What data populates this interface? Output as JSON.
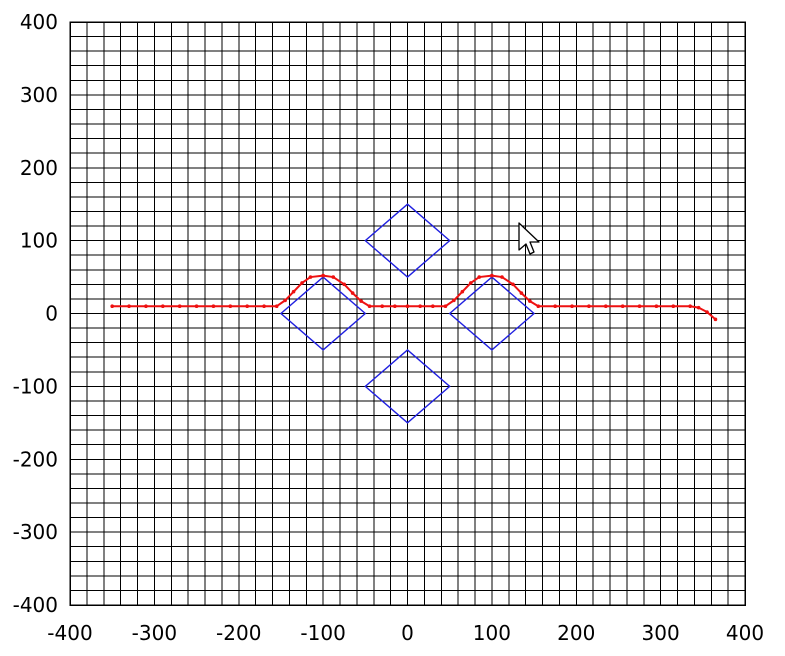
{
  "chart_data": {
    "type": "line",
    "title": "",
    "xlabel": "",
    "ylabel": "",
    "xlim": [
      -400,
      400
    ],
    "ylim": [
      -400,
      400
    ],
    "grid": true,
    "grid_step": 20,
    "xticks": [
      -400,
      -300,
      -200,
      -100,
      0,
      100,
      200,
      300,
      400
    ],
    "yticks": [
      400,
      300,
      200,
      100,
      0,
      -100,
      -200,
      -300,
      -400
    ],
    "xtick_labels": [
      "-400",
      "-300",
      "-200",
      "-100",
      "0",
      "100",
      "200",
      "300",
      "400"
    ],
    "ytick_labels": [
      "400",
      "300",
      "200",
      "100",
      "0",
      "-100",
      "-200",
      "-300",
      "-400"
    ],
    "colors": {
      "grid": "#000000",
      "obstacle": "#2020e0",
      "path": "#ee1111"
    },
    "obstacles": [
      {
        "points": [
          [
            -100,
            50
          ],
          [
            -50,
            0
          ],
          [
            -100,
            -50
          ],
          [
            -150,
            0
          ]
        ]
      },
      {
        "points": [
          [
            100,
            50
          ],
          [
            150,
            0
          ],
          [
            100,
            -50
          ],
          [
            50,
            0
          ]
        ]
      },
      {
        "points": [
          [
            0,
            150
          ],
          [
            50,
            100
          ],
          [
            0,
            50
          ],
          [
            -50,
            100
          ]
        ]
      },
      {
        "points": [
          [
            0,
            -50
          ],
          [
            50,
            -100
          ],
          [
            0,
            -150
          ],
          [
            -50,
            -100
          ]
        ]
      }
    ],
    "series": [
      {
        "values": [
          [
            -350,
            10
          ],
          [
            -330,
            10
          ],
          [
            -310,
            10
          ],
          [
            -290,
            10
          ],
          [
            -270,
            10
          ],
          [
            -250,
            10
          ],
          [
            -230,
            10
          ],
          [
            -210,
            10
          ],
          [
            -190,
            10
          ],
          [
            -170,
            10
          ],
          [
            -155,
            10
          ],
          [
            -145,
            18
          ],
          [
            -135,
            30
          ],
          [
            -125,
            42
          ],
          [
            -115,
            50
          ],
          [
            -100,
            52
          ],
          [
            -88,
            50
          ],
          [
            -75,
            40
          ],
          [
            -65,
            28
          ],
          [
            -55,
            17
          ],
          [
            -45,
            10
          ],
          [
            -30,
            10
          ],
          [
            -15,
            10
          ],
          [
            0,
            10
          ],
          [
            15,
            10
          ],
          [
            30,
            10
          ],
          [
            45,
            10
          ],
          [
            55,
            18
          ],
          [
            65,
            30
          ],
          [
            75,
            42
          ],
          [
            85,
            50
          ],
          [
            100,
            52
          ],
          [
            112,
            50
          ],
          [
            125,
            40
          ],
          [
            135,
            28
          ],
          [
            145,
            17
          ],
          [
            155,
            10
          ],
          [
            175,
            10
          ],
          [
            195,
            10
          ],
          [
            215,
            10
          ],
          [
            235,
            10
          ],
          [
            255,
            10
          ],
          [
            275,
            10
          ],
          [
            295,
            10
          ],
          [
            315,
            10
          ],
          [
            335,
            10
          ],
          [
            345,
            8
          ],
          [
            355,
            2
          ],
          [
            365,
            -8
          ]
        ]
      }
    ]
  },
  "cursor": {
    "icon": "mouse-pointer-icon"
  }
}
